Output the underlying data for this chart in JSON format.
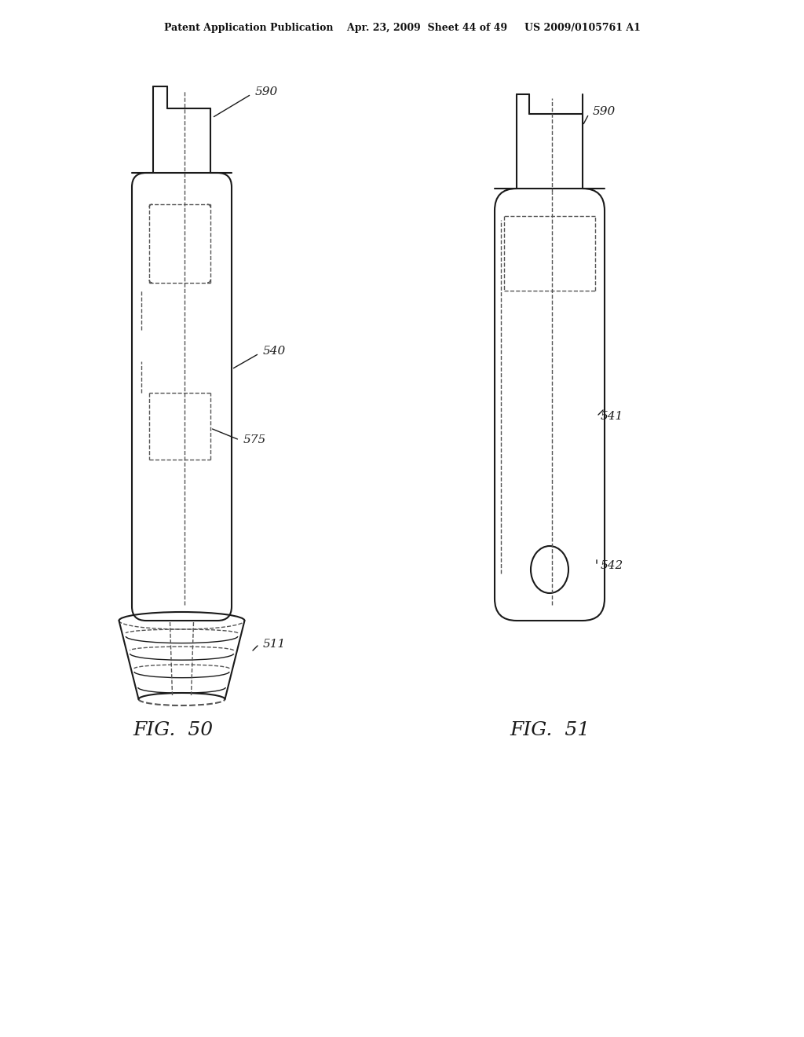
{
  "bg_color": "#ffffff",
  "header_text": "Patent Application Publication    Apr. 23, 2009  Sheet 44 of 49     US 2009/0105761 A1",
  "fig50_label": "FIG.  50",
  "fig51_label": "FIG.  51",
  "label_590_left": "590",
  "label_540": "540",
  "label_575": "575",
  "label_511": "511",
  "label_590_right": "590",
  "label_541": "541",
  "label_542": "542",
  "line_color": "#1a1a1a",
  "dashed_color": "#555555"
}
